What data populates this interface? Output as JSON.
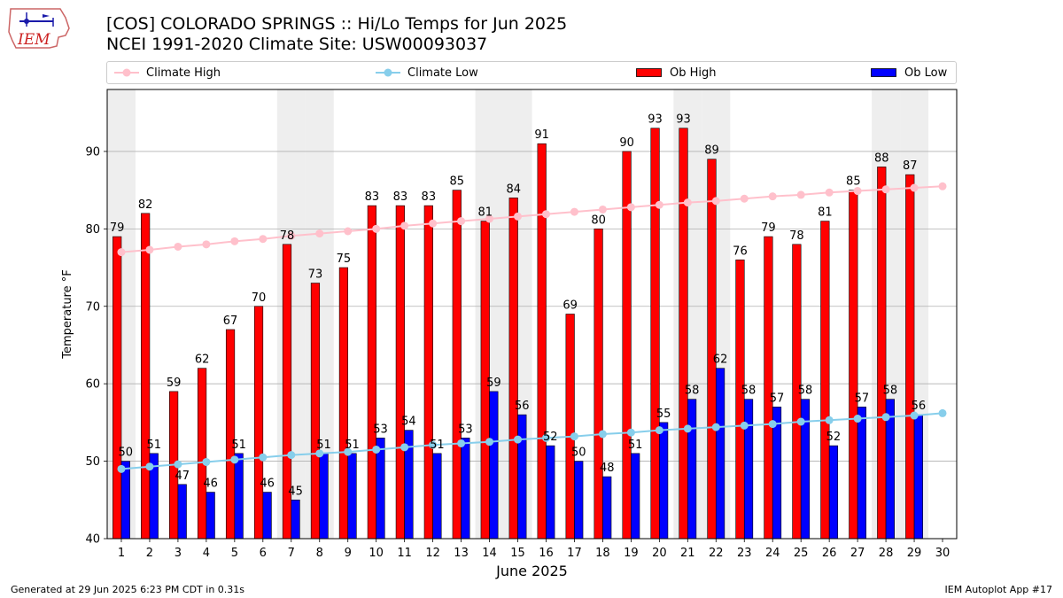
{
  "header": {
    "logo_text": "IEM",
    "title_line1": "[COS] COLORADO SPRINGS :: Hi/Lo Temps for Jun 2025",
    "title_line2": "NCEI 1991-2020 Climate Site: USW00093037"
  },
  "footer": {
    "generated": "Generated at 29 Jun 2025 6:23 PM CDT in 0.31s",
    "app": "IEM Autoplot App #17"
  },
  "colors": {
    "climate_high": "#ffc0cb",
    "climate_low": "#87ceeb",
    "ob_high": "#ff0000",
    "ob_low": "#0000ff",
    "weekend_band": "#eeeeee",
    "grid": "#b0b0b0"
  },
  "chart_data": {
    "type": "bar",
    "xlabel": "June 2025",
    "ylabel": "Temperature °F",
    "ylim": [
      40,
      98
    ],
    "yticks": [
      40,
      50,
      60,
      70,
      80,
      90
    ],
    "grid": "horizontal",
    "legend_placement": "top",
    "categories": [
      "1",
      "2",
      "3",
      "4",
      "5",
      "6",
      "7",
      "8",
      "9",
      "10",
      "11",
      "12",
      "13",
      "14",
      "15",
      "16",
      "17",
      "18",
      "19",
      "20",
      "21",
      "22",
      "23",
      "24",
      "25",
      "26",
      "27",
      "28",
      "29",
      "30"
    ],
    "shaded_days": [
      1,
      7,
      8,
      14,
      15,
      21,
      22,
      28,
      29
    ],
    "series": [
      {
        "name": "Ob High",
        "kind": "bar",
        "values": [
          79,
          82,
          59,
          62,
          67,
          70,
          78,
          73,
          75,
          83,
          83,
          83,
          85,
          81,
          84,
          91,
          69,
          80,
          90,
          93,
          93,
          89,
          76,
          79,
          78,
          81,
          85,
          88,
          87,
          null
        ]
      },
      {
        "name": "Ob Low",
        "kind": "bar",
        "values": [
          50,
          51,
          47,
          46,
          51,
          46,
          45,
          51,
          51,
          53,
          54,
          51,
          53,
          59,
          56,
          52,
          50,
          48,
          51,
          55,
          58,
          62,
          58,
          57,
          58,
          52,
          57,
          58,
          56,
          null
        ]
      },
      {
        "name": "Climate High",
        "kind": "line",
        "values": [
          77.0,
          77.3,
          77.7,
          78.0,
          78.4,
          78.7,
          79.1,
          79.4,
          79.7,
          80.0,
          80.4,
          80.7,
          81.0,
          81.3,
          81.6,
          81.9,
          82.2,
          82.5,
          82.8,
          83.1,
          83.4,
          83.6,
          83.9,
          84.2,
          84.4,
          84.7,
          84.9,
          85.1,
          85.3,
          85.5
        ]
      },
      {
        "name": "Climate Low",
        "kind": "line",
        "values": [
          49.0,
          49.3,
          49.6,
          49.9,
          50.2,
          50.5,
          50.8,
          51.0,
          51.2,
          51.5,
          51.8,
          52.1,
          52.3,
          52.5,
          52.8,
          53.0,
          53.2,
          53.5,
          53.7,
          54.0,
          54.2,
          54.4,
          54.6,
          54.8,
          55.1,
          55.3,
          55.5,
          55.7,
          55.9,
          56.2
        ]
      }
    ]
  }
}
